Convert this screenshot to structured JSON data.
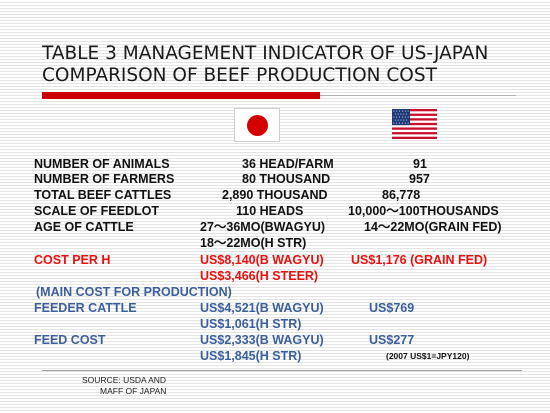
{
  "title": {
    "line1": "TABLE 3 MANAGEMENT INDICATOR OF US-JAPAN",
    "line2": "COMPARISON OF BEEF PRODUCTION COST"
  },
  "flags": {
    "left": "japan-flag",
    "right": "usa-flag"
  },
  "colors": {
    "accent_red": "#cc0000",
    "text_red": "#e8110f",
    "text_blue": "#3b5f9c"
  },
  "rows": {
    "animals": {
      "label": "NUMBER OF ANIMALS",
      "jp": "36 HEAD/FARM",
      "us": "91"
    },
    "farmers": {
      "label": "NUMBER OF FARMERS",
      "jp": "80 THOUSAND",
      "us": "957"
    },
    "cattles": {
      "label": "TOTAL BEEF CATTLES",
      "jp": "2,890 THOUSAND",
      "us": "86,778"
    },
    "feedlot": {
      "label": "SCALE OF FEEDLOT",
      "jp": "110 HEADS",
      "us": "10,000～100THOUSANDS"
    },
    "age": {
      "label": "AGE OF CATTLE",
      "jp": "27～36MO(BWAGYU)",
      "us": "14～22MO(GRAIN FED)",
      "jp2": "18～22MO(H STR)"
    },
    "cost": {
      "label": "COST PER H",
      "jp": "US$8,140(B WAGYU)",
      "us": "US$1,176 (GRAIN FED)",
      "jp2": "US$3,466(H STEER)"
    },
    "main": {
      "label": "(MAIN COST FOR PRODUCTION)"
    },
    "feeder": {
      "label": "FEEDER CATTLE",
      "jp": "US$4,521(B WAGYU)",
      "us": "US$769",
      "jp2": "US$1,061(H STR)"
    },
    "feed": {
      "label": "FEED COST",
      "jp": "US$2,333(B WAGYU)",
      "us": "US$277",
      "jp2": "US$1,845(H STR)"
    }
  },
  "rate_note": "(2007 US$1=JPY120)",
  "source": {
    "line1": "SOURCE: USDA AND",
    "line2": "MAFF OF JAPAN"
  }
}
